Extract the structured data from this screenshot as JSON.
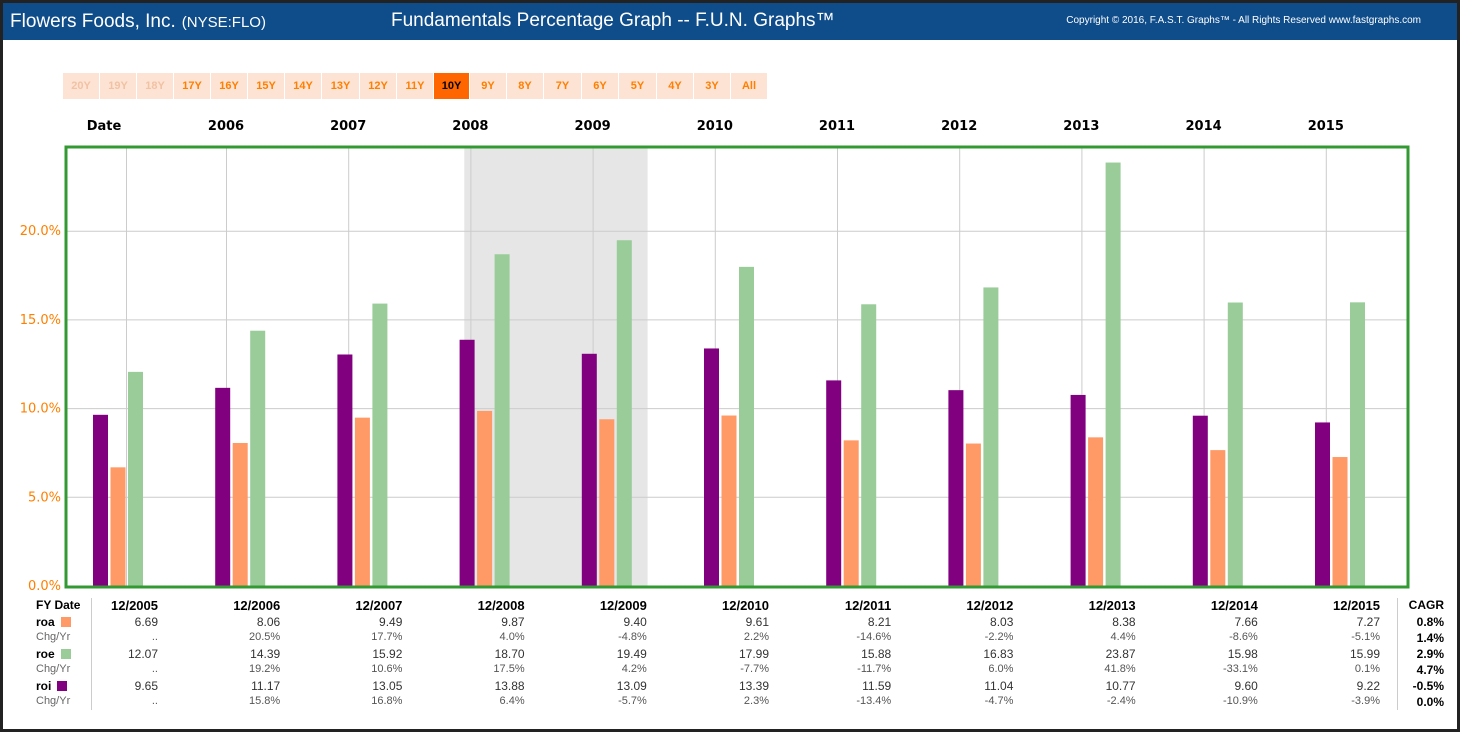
{
  "header": {
    "company": "Flowers Foods, Inc.",
    "ticker": "(NYSE:FLO)",
    "title": "Fundamentals Percentage Graph -- F.U.N. Graphs™",
    "copyright": "Copyright © 2016, F.A.S.T. Graphs™ - All Rights Reserved www.fastgraphs.com"
  },
  "tabs": [
    {
      "label": "20Y",
      "state": "disabled"
    },
    {
      "label": "19Y",
      "state": "disabled"
    },
    {
      "label": "18Y",
      "state": "disabled"
    },
    {
      "label": "17Y",
      "state": "normal"
    },
    {
      "label": "16Y",
      "state": "normal"
    },
    {
      "label": "15Y",
      "state": "normal"
    },
    {
      "label": "14Y",
      "state": "normal"
    },
    {
      "label": "13Y",
      "state": "normal"
    },
    {
      "label": "12Y",
      "state": "normal"
    },
    {
      "label": "11Y",
      "state": "normal"
    },
    {
      "label": "10Y",
      "state": "active"
    },
    {
      "label": "9Y",
      "state": "normal"
    },
    {
      "label": "8Y",
      "state": "normal"
    },
    {
      "label": "7Y",
      "state": "normal"
    },
    {
      "label": "6Y",
      "state": "normal"
    },
    {
      "label": "5Y",
      "state": "normal"
    },
    {
      "label": "4Y",
      "state": "normal"
    },
    {
      "label": "3Y",
      "state": "normal"
    },
    {
      "label": "All",
      "state": "normal"
    }
  ],
  "colors": {
    "roa": "#ff9966",
    "roe": "#99cc99",
    "roi": "#800080",
    "axis": "#ff7f00",
    "frame": "#339933",
    "recession": "#e6e6e6"
  },
  "chart_data": {
    "type": "bar",
    "date_label": "Date",
    "years": [
      "2006",
      "2007",
      "2008",
      "2009",
      "2010",
      "2011",
      "2012",
      "2013",
      "2014",
      "2015"
    ],
    "categories": [
      "12/2005",
      "12/2006",
      "12/2007",
      "12/2008",
      "12/2009",
      "12/2010",
      "12/2011",
      "12/2012",
      "12/2013",
      "12/2014",
      "12/2015"
    ],
    "series": [
      {
        "name": "roi",
        "values": [
          9.65,
          11.17,
          13.05,
          13.88,
          13.09,
          13.39,
          11.59,
          11.04,
          10.77,
          9.6,
          9.22
        ]
      },
      {
        "name": "roa",
        "values": [
          6.69,
          8.06,
          9.49,
          9.87,
          9.4,
          9.61,
          8.21,
          8.03,
          8.38,
          7.66,
          7.27
        ]
      },
      {
        "name": "roe",
        "values": [
          12.07,
          14.39,
          15.92,
          18.7,
          19.49,
          17.99,
          15.88,
          16.83,
          23.87,
          15.98,
          15.99
        ]
      }
    ],
    "yticks": [
      "0.0%",
      "5.0%",
      "10.0%",
      "15.0%",
      "20.0%"
    ],
    "ytick_values": [
      0,
      5,
      10,
      15,
      20
    ],
    "ylim": [
      0,
      24.5
    ],
    "recession_shade": {
      "from": "2007.95",
      "to": "2009.45"
    },
    "grid": true
  },
  "table": {
    "fy_label": "FY Date",
    "cagr_label": "CAGR",
    "dates": [
      "12/2005",
      "12/2006",
      "12/2007",
      "12/2008",
      "12/2009",
      "12/2010",
      "12/2011",
      "12/2012",
      "12/2013",
      "12/2014",
      "12/2015"
    ],
    "rows": [
      {
        "label": "roa",
        "key": "roa",
        "type": "main",
        "values": [
          "6.69",
          "8.06",
          "9.49",
          "9.87",
          "9.40",
          "9.61",
          "8.21",
          "8.03",
          "8.38",
          "7.66",
          "7.27"
        ],
        "cagr": "0.8%"
      },
      {
        "label": "Chg/Yr",
        "type": "chg",
        "values": [
          "..",
          "20.5%",
          "17.7%",
          "4.0%",
          "-4.8%",
          "2.2%",
          "-14.6%",
          "-2.2%",
          "4.4%",
          "-8.6%",
          "-5.1%"
        ],
        "cagr": "1.4%"
      },
      {
        "label": "roe",
        "key": "roe",
        "type": "main",
        "values": [
          "12.07",
          "14.39",
          "15.92",
          "18.70",
          "19.49",
          "17.99",
          "15.88",
          "16.83",
          "23.87",
          "15.98",
          "15.99"
        ],
        "cagr": "2.9%"
      },
      {
        "label": "Chg/Yr",
        "type": "chg",
        "values": [
          "..",
          "19.2%",
          "10.6%",
          "17.5%",
          "4.2%",
          "-7.7%",
          "-11.7%",
          "6.0%",
          "41.8%",
          "-33.1%",
          "0.1%"
        ],
        "cagr": "4.7%"
      },
      {
        "label": "roi",
        "key": "roi",
        "type": "main",
        "values": [
          "9.65",
          "11.17",
          "13.05",
          "13.88",
          "13.09",
          "13.39",
          "11.59",
          "11.04",
          "10.77",
          "9.60",
          "9.22"
        ],
        "cagr": "-0.5%"
      },
      {
        "label": "Chg/Yr",
        "type": "chg",
        "values": [
          "..",
          "15.8%",
          "16.8%",
          "6.4%",
          "-5.7%",
          "2.3%",
          "-13.4%",
          "-4.7%",
          "-2.4%",
          "-10.9%",
          "-3.9%"
        ],
        "cagr": "0.0%"
      }
    ]
  }
}
